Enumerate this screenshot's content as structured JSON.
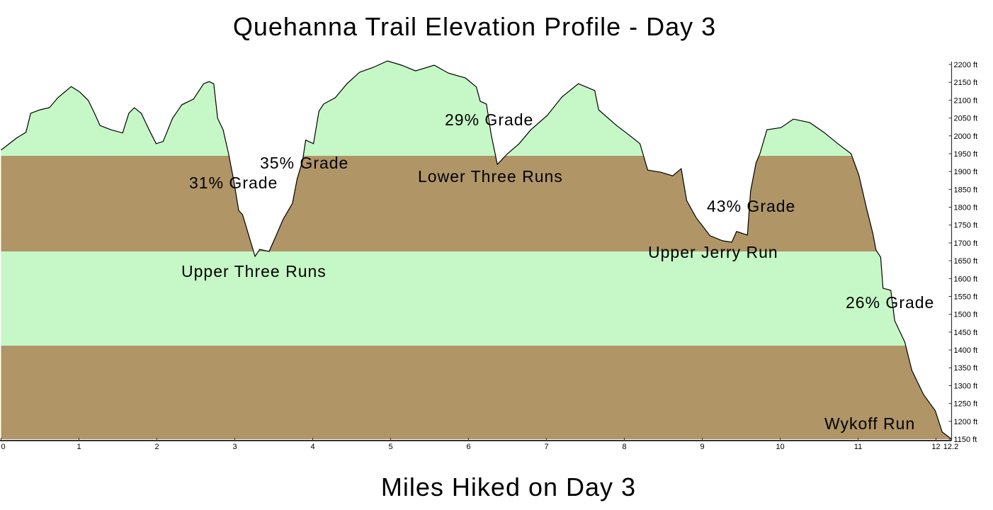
{
  "chart_data": {
    "type": "area",
    "title": "Quehanna Trail Elevation Profile - Day 3",
    "xlabel": "Miles Hiked on Day 3",
    "ylabel": "",
    "xlim": [
      0,
      12.2
    ],
    "ylim": [
      1150,
      2200
    ],
    "x_ticks": [
      "0",
      "1",
      "2",
      "3",
      "4",
      "5",
      "6",
      "7",
      "8",
      "9",
      "10",
      "11",
      "12",
      "12.2"
    ],
    "y_ticks": [
      "2200 ft",
      "2150 ft",
      "2100 ft",
      "2050 ft",
      "2000 ft",
      "1950 ft",
      "1900 ft",
      "1850 ft",
      "1800 ft",
      "1750 ft",
      "1700 ft",
      "1650 ft",
      "1600 ft",
      "1550 ft",
      "1500 ft",
      "1450 ft",
      "1400 ft",
      "1350 ft",
      "1300 ft",
      "1250 ft",
      "1200 ft",
      "1150 ft"
    ],
    "y_axis_position": "right",
    "grid": false,
    "band_colors": [
      "#b09567",
      "#c6f7c6",
      "#b09567",
      "#c6f7c6"
    ],
    "band_boundaries_ft": [
      1150,
      1412,
      1676,
      1944,
      2200
    ],
    "line_color": "#000000",
    "series": [
      {
        "x": [
          0,
          0.2,
          0.32,
          0.38,
          0.5,
          0.62,
          0.73,
          0.9,
          1.01,
          1.12,
          1.2,
          1.27,
          1.41,
          1.56,
          1.64,
          1.71,
          1.8,
          1.9,
          1.99,
          2.08,
          2.2,
          2.32,
          2.47,
          2.6,
          2.67,
          2.73,
          2.78,
          2.85,
          2.92,
          2.99,
          3.05,
          3.1,
          3.2,
          3.26,
          3.32,
          3.44,
          3.53,
          3.62,
          3.74,
          3.8,
          3.87,
          3.91,
          4.01,
          4.08,
          4.14,
          4.29,
          4.44,
          4.6,
          4.78,
          4.96,
          5.14,
          5.32,
          5.56,
          5.74,
          5.96,
          6.1,
          6.15,
          6.23,
          6.29,
          6.37,
          6.5,
          6.65,
          6.8,
          7.01,
          7.2,
          7.41,
          7.62,
          7.67,
          7.9,
          8.05,
          8.2,
          8.3,
          8.47,
          8.62,
          8.73,
          8.8,
          8.92,
          9.1,
          9.26,
          9.38,
          9.44,
          9.58,
          9.62,
          9.69,
          9.74,
          9.83,
          10.01,
          10.17,
          10.38,
          10.56,
          10.74,
          10.91,
          11.01,
          11.1,
          11.19,
          11.23,
          11.29,
          11.32,
          11.42,
          11.47,
          11.6,
          11.69,
          11.84,
          11.99,
          12.08,
          12.2
        ],
        "y": [
          1960,
          1994,
          2010,
          2063,
          2073,
          2079,
          2107,
          2138,
          2123,
          2099,
          2063,
          2029,
          2017,
          2008,
          2063,
          2079,
          2063,
          2017,
          1978,
          1984,
          2049,
          2087,
          2103,
          2146,
          2152,
          2146,
          2049,
          2017,
          1950,
          1871,
          1791,
          1779,
          1706,
          1662,
          1682,
          1676,
          1720,
          1766,
          1811,
          1879,
          1930,
          1988,
          1978,
          2069,
          2089,
          2107,
          2146,
          2178,
          2192,
          2210,
          2198,
          2182,
          2198,
          2176,
          2162,
          2137,
          2097,
          2089,
          2004,
          1920,
          1950,
          1978,
          2017,
          2057,
          2109,
          2146,
          2127,
          2073,
          2029,
          2004,
          1978,
          1904,
          1898,
          1888,
          1908,
          1819,
          1771,
          1720,
          1706,
          1702,
          1732,
          1722,
          1845,
          1924,
          1950,
          2017,
          2023,
          2047,
          2037,
          2010,
          1978,
          1950,
          1890,
          1805,
          1726,
          1680,
          1660,
          1573,
          1567,
          1482,
          1422,
          1343,
          1275,
          1230,
          1170,
          1150
        ]
      }
    ],
    "annotations": [
      "31% Grade",
      "35% Grade",
      "Upper Three Runs",
      "29% Grade",
      "Lower Three Runs",
      "43% Grade",
      "Upper Jerry Run",
      "26% Grade",
      "Wykoff Run"
    ]
  }
}
